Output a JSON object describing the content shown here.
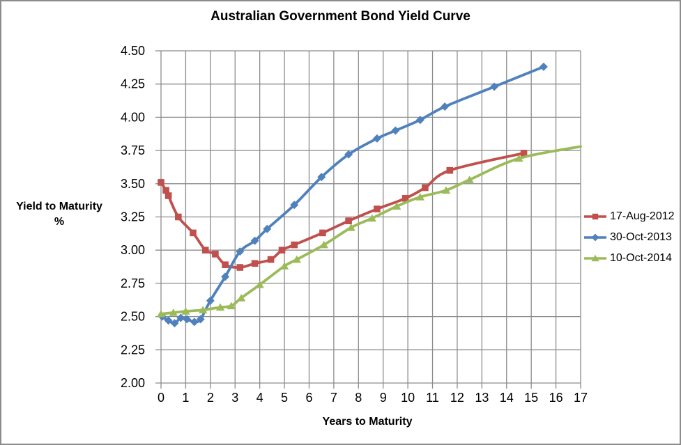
{
  "chart_data": {
    "type": "line",
    "title": "Australian Government Bond Yield Curve",
    "xlabel": "Years to Maturity",
    "ylabel": "Yield to Maturity",
    "ylabel_unit": "%",
    "xlim": [
      0,
      17
    ],
    "ylim": [
      2.0,
      4.5
    ],
    "x_ticks": [
      "0",
      "1",
      "2",
      "3",
      "4",
      "5",
      "6",
      "7",
      "8",
      "9",
      "10",
      "11",
      "12",
      "13",
      "14",
      "15",
      "16",
      "17"
    ],
    "y_ticks": [
      "4.50",
      "4.25",
      "4.00",
      "3.75",
      "3.50",
      "3.25",
      "3.00",
      "2.75",
      "2.50",
      "2.25",
      "2.00"
    ],
    "grid": true,
    "legend_position": "right",
    "colors": {
      "grid": "#8c8c8c",
      "axis_text": "#000000",
      "background": "#ffffff"
    },
    "series": [
      {
        "name": "17-Aug-2012",
        "color": "#C0504D",
        "marker": "square",
        "points": [
          [
            0,
            3.51
          ],
          [
            0.2,
            3.45
          ],
          [
            0.3,
            3.41
          ],
          [
            0.7,
            3.25
          ],
          [
            1.3,
            3.13
          ],
          [
            1.8,
            3.0
          ],
          [
            2.2,
            2.97
          ],
          [
            2.6,
            2.89
          ],
          [
            3.2,
            2.87
          ],
          [
            3.8,
            2.9
          ],
          [
            4.45,
            2.93
          ],
          [
            4.9,
            3.0
          ],
          [
            5.4,
            3.04
          ],
          [
            6.55,
            3.13
          ],
          [
            7.6,
            3.22
          ],
          [
            8.75,
            3.31
          ],
          [
            9.9,
            3.39
          ],
          [
            10.7,
            3.47
          ],
          [
            11.7,
            3.6
          ],
          [
            14.7,
            3.73
          ]
        ]
      },
      {
        "name": "30-Oct-2013",
        "color": "#4F81BD",
        "marker": "diamond",
        "points": [
          [
            0.05,
            2.5
          ],
          [
            0.3,
            2.47
          ],
          [
            0.55,
            2.45
          ],
          [
            0.8,
            2.49
          ],
          [
            1.05,
            2.48
          ],
          [
            1.35,
            2.46
          ],
          [
            1.6,
            2.48
          ],
          [
            2.0,
            2.62
          ],
          [
            2.6,
            2.8
          ],
          [
            3.2,
            2.99
          ],
          [
            3.8,
            3.07
          ],
          [
            4.3,
            3.16
          ],
          [
            5.4,
            3.34
          ],
          [
            6.5,
            3.55
          ],
          [
            7.6,
            3.72
          ],
          [
            8.75,
            3.84
          ],
          [
            9.5,
            3.9
          ],
          [
            10.5,
            3.98
          ],
          [
            11.5,
            4.08
          ],
          [
            13.5,
            4.23
          ],
          [
            15.5,
            4.38
          ]
        ]
      },
      {
        "name": "10-Oct-2014",
        "color": "#9BBB59",
        "marker": "triangle",
        "last_point_marker": false,
        "points": [
          [
            0,
            2.52
          ],
          [
            0.5,
            2.53
          ],
          [
            1.0,
            2.54
          ],
          [
            1.7,
            2.55
          ],
          [
            2.4,
            2.57
          ],
          [
            2.85,
            2.58
          ],
          [
            3.25,
            2.64
          ],
          [
            4.0,
            2.74
          ],
          [
            5.0,
            2.88
          ],
          [
            5.5,
            2.93
          ],
          [
            6.6,
            3.04
          ],
          [
            7.7,
            3.17
          ],
          [
            8.55,
            3.24
          ],
          [
            9.55,
            3.33
          ],
          [
            10.5,
            3.4
          ],
          [
            11.55,
            3.45
          ],
          [
            12.5,
            3.53
          ],
          [
            14.5,
            3.69
          ],
          [
            17.0,
            3.78
          ]
        ]
      }
    ]
  }
}
